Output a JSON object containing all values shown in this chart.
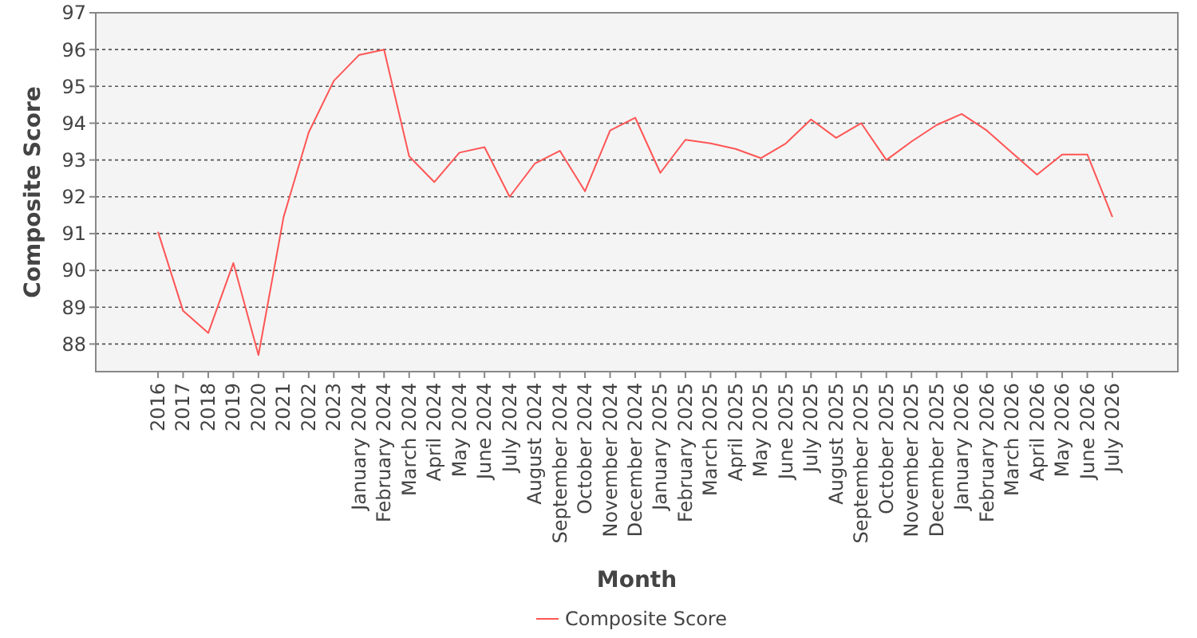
{
  "chart_data": {
    "type": "line",
    "xlabel": "Month",
    "ylabel": "Composite Score",
    "categories": [
      "2016",
      "2017",
      "2018",
      "2019",
      "2020",
      "2021",
      "2022",
      "2023",
      "January 2024",
      "February 2024",
      "March 2024",
      "April 2024",
      "May 2024",
      "June 2024",
      "July 2024",
      "August 2024",
      "September 2024",
      "October 2024",
      "November 2024",
      "December 2024",
      "January 2025",
      "February 2025",
      "March 2025",
      "April 2025",
      "May 2025",
      "June 2025",
      "July 2025",
      "August 2025",
      "September 2025",
      "October 2025",
      "November 2025",
      "December 2025",
      "January 2026",
      "February 2026",
      "March 2026",
      "April 2026",
      "May 2026",
      "June 2026",
      "July 2026"
    ],
    "series": [
      {
        "name": "Composite Score",
        "color": "#ff5555",
        "values": [
          91.05,
          88.9,
          88.3,
          90.2,
          87.7,
          91.45,
          93.75,
          95.15,
          95.85,
          96.0,
          93.1,
          92.4,
          93.2,
          93.35,
          92.0,
          92.9,
          93.25,
          92.15,
          93.8,
          94.15,
          92.65,
          93.55,
          93.45,
          93.3,
          93.05,
          93.45,
          94.1,
          93.6,
          94.0,
          93.0,
          93.5,
          93.95,
          94.25,
          93.8,
          93.2,
          92.6,
          93.15,
          93.15,
          91.45
        ]
      }
    ],
    "ylim": [
      87.25,
      97
    ],
    "yticks": [
      88,
      89,
      90,
      91,
      92,
      93,
      94,
      95,
      96,
      97
    ],
    "grid": "y",
    "legend": "bottom",
    "marker": "none",
    "line_style": "solid"
  }
}
